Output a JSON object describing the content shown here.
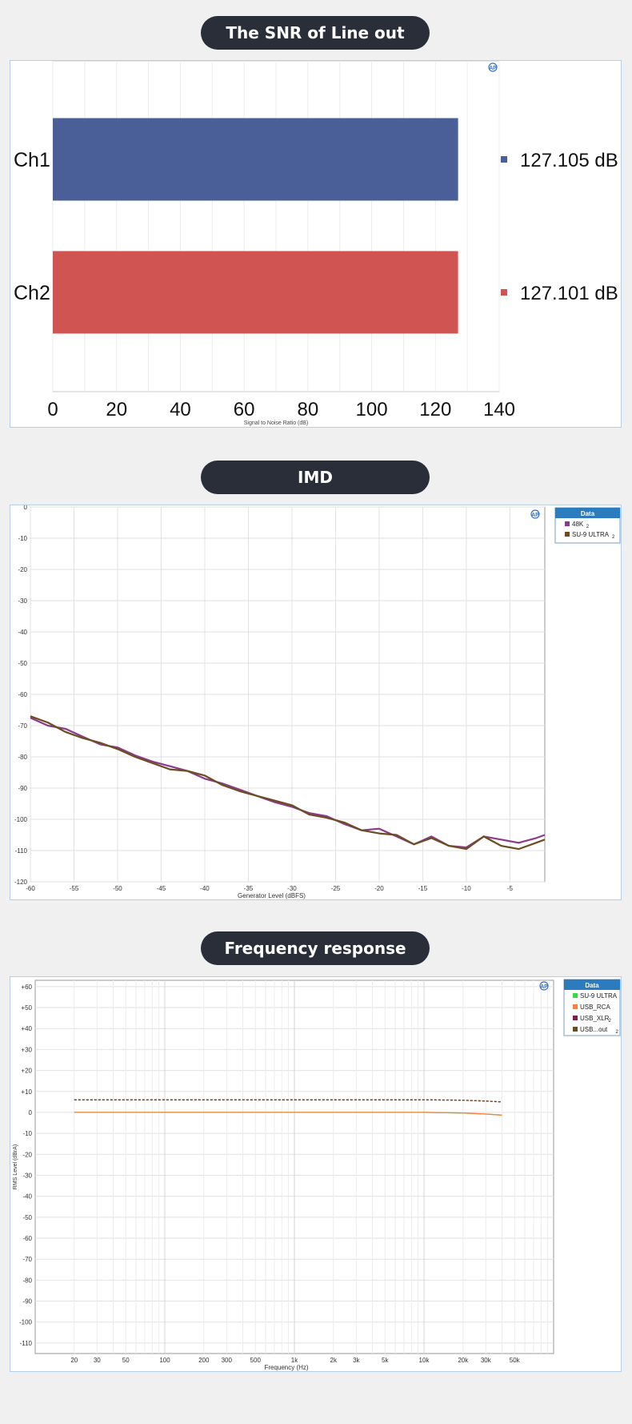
{
  "sections": {
    "snr_title": "The SNR of Line out",
    "imd_title": "IMD",
    "fr_title": "Frequency response"
  },
  "chart_data": [
    {
      "type": "bar",
      "orientation": "horizontal",
      "categories": [
        "Ch1",
        "Ch2"
      ],
      "values": [
        127.105,
        127.101
      ],
      "value_labels": [
        "127.105 dB",
        "127.101 dB"
      ],
      "colors": [
        "#4a5e97",
        "#d05552"
      ],
      "xlabel": "Signal to Noise Ratio (dB)",
      "xlim": [
        0,
        140
      ],
      "xticks": [
        0,
        20,
        40,
        60,
        80,
        100,
        120,
        140
      ],
      "grid": true
    },
    {
      "type": "line",
      "xlabel": "Generator Level (dBFS)",
      "ylabel": "",
      "xlim": [
        -60,
        -1
      ],
      "ylim": [
        -120,
        0
      ],
      "xticks": [
        -60,
        -55,
        -50,
        -45,
        -40,
        -35,
        -30,
        -25,
        -20,
        -15,
        -10,
        -5
      ],
      "yticks": [
        0,
        -10,
        -20,
        -30,
        -40,
        -50,
        -60,
        -70,
        -80,
        -90,
        -100,
        -110,
        -120
      ],
      "legend": {
        "title": "Data",
        "placement": "right"
      },
      "series": [
        {
          "name": "48K",
          "sub": "2",
          "color": "#8b3a8b",
          "x": [
            -60,
            -58,
            -56,
            -54,
            -52,
            -50,
            -48,
            -46,
            -44,
            -42,
            -40,
            -38,
            -36,
            -34,
            -32,
            -30,
            -28,
            -26,
            -24,
            -22,
            -20,
            -18,
            -16,
            -14,
            -12,
            -10,
            -8,
            -6,
            -4,
            -2,
            -1
          ],
          "y": [
            -67.5,
            -70,
            -71,
            -73.5,
            -76,
            -77,
            -79.5,
            -81.5,
            -83,
            -84.5,
            -87,
            -88.5,
            -90.5,
            -92.5,
            -94.5,
            -96,
            -98,
            -99,
            -101.5,
            -103.5,
            -103,
            -105.5,
            -108,
            -105.5,
            -108.5,
            -109,
            -105.5,
            -106.5,
            -107.5,
            -106,
            -105
          ]
        },
        {
          "name": "SU-9 ULTRA",
          "sub": "2",
          "color": "#6b4d1f",
          "x": [
            -60,
            -58,
            -56,
            -54,
            -52,
            -50,
            -48,
            -46,
            -44,
            -42,
            -40,
            -38,
            -36,
            -34,
            -32,
            -30,
            -28,
            -26,
            -24,
            -22,
            -20,
            -18,
            -16,
            -14,
            -12,
            -10,
            -8,
            -6,
            -4,
            -2,
            -1
          ],
          "y": [
            -67,
            -69,
            -72,
            -74,
            -75.5,
            -77.5,
            -80,
            -82,
            -84,
            -84.5,
            -86,
            -89,
            -91,
            -92.5,
            -94,
            -95.5,
            -98.5,
            -99.5,
            -101,
            -103.5,
            -104.5,
            -105,
            -108,
            -106,
            -108.5,
            -109.5,
            -105.5,
            -108.5,
            -109.5,
            -107.5,
            -106.5
          ]
        }
      ]
    },
    {
      "type": "line",
      "xscale": "log",
      "xlabel": "Frequency (Hz)",
      "ylabel": "RMS Level (dBrA)",
      "xlim": [
        10,
        100000
      ],
      "ylim": [
        -115,
        63
      ],
      "xticks": [
        20,
        30,
        50,
        100,
        200,
        300,
        500,
        1000,
        2000,
        3000,
        5000,
        10000,
        20000,
        30000,
        50000
      ],
      "xtick_labels": [
        "20",
        "30",
        "50",
        "100",
        "200",
        "300",
        "500",
        "1k",
        "2k",
        "3k",
        "5k",
        "10k",
        "20k",
        "30k",
        "50k"
      ],
      "yticks": [
        60,
        50,
        40,
        30,
        20,
        10,
        0,
        -10,
        -20,
        -30,
        -40,
        -50,
        -60,
        -70,
        -80,
        -90,
        -100,
        -110
      ],
      "ytick_labels": [
        "+60",
        "+50",
        "+40",
        "+30",
        "+20",
        "+10",
        "0",
        "-10",
        "-20",
        "-30",
        "-40",
        "-50",
        "-60",
        "-70",
        "-80",
        "-90",
        "-100",
        "-110"
      ],
      "legend": {
        "title": "Data",
        "placement": "right"
      },
      "series": [
        {
          "name": "SU-9 ULTRA",
          "sub": "",
          "color": "#33dd44",
          "dashed": false,
          "x": [
            20,
            100,
            1000,
            10000,
            20000,
            30000,
            40000
          ],
          "y": [
            0,
            0,
            0,
            0,
            -0.3,
            -0.8,
            -1.3
          ]
        },
        {
          "name": "USB_RCA",
          "sub": "",
          "color": "#ff7f3f",
          "dashed": false,
          "x": [
            20,
            100,
            1000,
            10000,
            20000,
            30000,
            40000
          ],
          "y": [
            0,
            0,
            0,
            0,
            -0.3,
            -0.8,
            -1.3
          ]
        },
        {
          "name": "USB_XLR",
          "sub": "2",
          "color": "#8b1a4a",
          "dashed": true,
          "x": [
            20,
            100,
            1000,
            10000,
            20000,
            30000,
            40000
          ],
          "y": [
            6,
            6,
            6,
            6,
            5.8,
            5.4,
            5
          ]
        },
        {
          "name": "USB...out",
          "sub": "2",
          "color": "#6b4a1f",
          "dashed": true,
          "x": [
            20,
            100,
            1000,
            10000,
            20000,
            30000,
            40000
          ],
          "y": [
            6,
            6,
            6,
            6,
            5.8,
            5.4,
            5
          ]
        }
      ]
    }
  ]
}
